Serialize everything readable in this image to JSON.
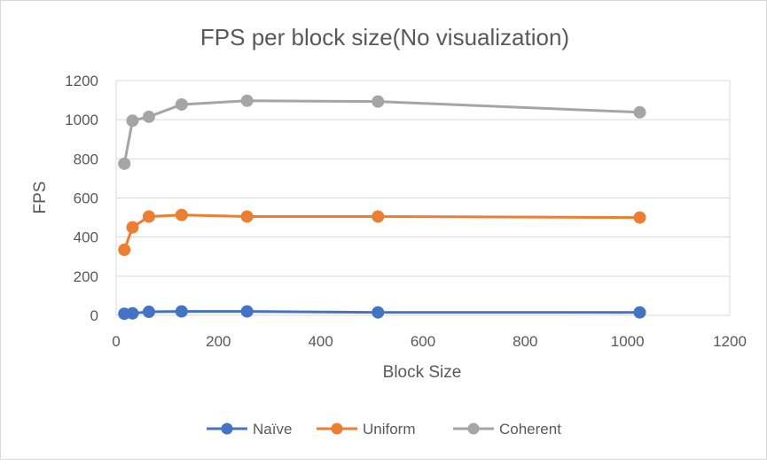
{
  "chart_data": {
    "type": "scatter",
    "mode": "lines+markers",
    "title": "FPS per block size(No visualization)",
    "xlabel": "Block Size",
    "ylabel": "FPS",
    "xlim": [
      0,
      1200
    ],
    "ylim": [
      0,
      1200
    ],
    "x_ticks": [
      0,
      200,
      400,
      600,
      800,
      1000,
      1200
    ],
    "y_ticks": [
      0,
      200,
      400,
      600,
      800,
      1000,
      1200
    ],
    "grid": "horizontal",
    "legend": "bottom",
    "x": [
      16,
      32,
      64,
      128,
      256,
      512,
      1024
    ],
    "series": [
      {
        "name": "Naïve",
        "color": "#4472c4",
        "values": [
          8,
          10,
          18,
          20,
          20,
          15,
          15
        ]
      },
      {
        "name": "Uniform",
        "color": "#ed7d31",
        "values": [
          335,
          450,
          505,
          513,
          505,
          505,
          500
        ]
      },
      {
        "name": "Coherent",
        "color": "#a5a5a5",
        "values": [
          775,
          995,
          1015,
          1078,
          1097,
          1093,
          1038
        ]
      }
    ]
  }
}
